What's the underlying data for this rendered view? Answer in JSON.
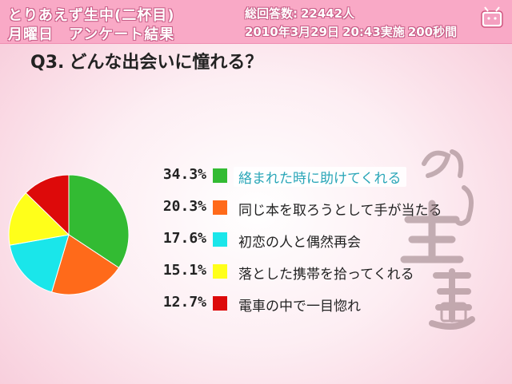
{
  "header": {
    "program": "とりあえず生中(二杯目)",
    "subtitle": "月曜日　アンケート結果",
    "total_label": "総回答数:",
    "total_value": "22442人",
    "date": "2010年3月29日",
    "time_label": "20:43実施",
    "duration": "200秒間"
  },
  "question": {
    "number": "Q3.",
    "text": "どんな出会いに憧れる？"
  },
  "colors": {
    "green": "#33bb33",
    "orange": "#ff6a1a",
    "cyan": "#1ae6ea",
    "yellow": "#ffff1a",
    "red": "#dd0a0a"
  },
  "icons": [
    "tv-mascot-icon",
    "watermark-logo-icon"
  ],
  "chart_data": {
    "type": "pie",
    "title": "",
    "categories": [
      "絡まれた時に助けてくれる",
      "同じ本を取ろうとして手が当たる",
      "初恋の人と偶然再会",
      "落とした携帯を拾ってくれる",
      "電車の中で一目惚れ"
    ],
    "values": [
      34.3,
      20.3,
      17.6,
      15.1,
      12.7
    ],
    "value_labels": [
      "34.3%",
      "20.3%",
      "17.6%",
      "15.1%",
      "12.7%"
    ],
    "colors": [
      "#33bb33",
      "#ff6a1a",
      "#1ae6ea",
      "#ffff1a",
      "#dd0a0a"
    ],
    "legend_position": "right",
    "highlighted_index": 0
  }
}
